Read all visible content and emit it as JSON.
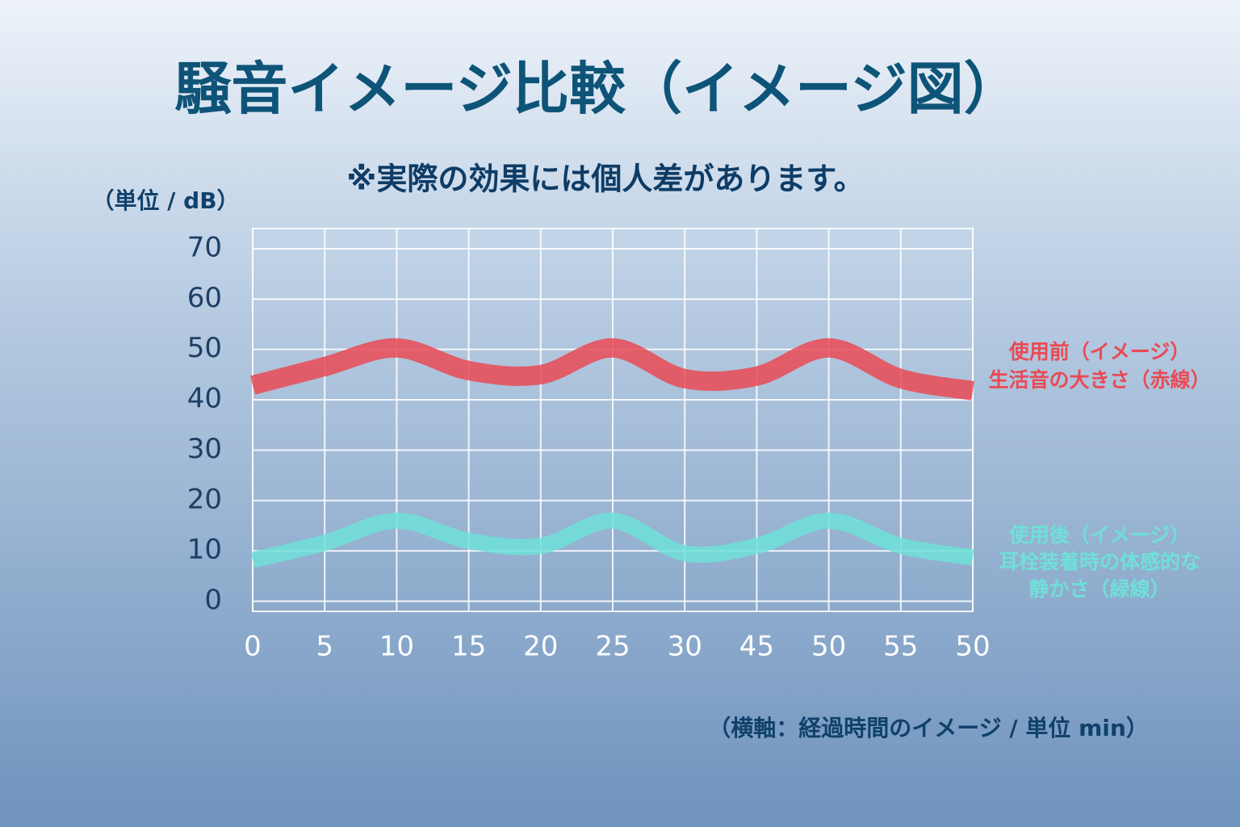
{
  "chart_data": {
    "type": "line",
    "title": "騒音イメージ比較（イメージ図）",
    "subtitle": "※実際の効果には個人差があります。",
    "y_label": "（単位 / dB）",
    "x_label": "（横軸：経過時間のイメージ / 単位 min）",
    "categories": [
      "0",
      "5",
      "10",
      "15",
      "20",
      "25",
      "30",
      "45",
      "50",
      "55",
      "50"
    ],
    "ylim": [
      -2,
      74
    ],
    "yticks": [
      0,
      10,
      20,
      30,
      40,
      50,
      60,
      70
    ],
    "grid": true,
    "series": [
      {
        "name": [
          "使用前（イメージ）",
          "生活音の大きさ（赤線）"
        ],
        "color": "#ea4a55",
        "values": [
          42.9,
          46.6,
          50.3,
          45.8,
          45,
          50.3,
          44.2,
          44.7,
          50.3,
          44.2,
          41.8
        ]
      },
      {
        "name": [
          "使用後（イメージ）",
          "耳栓装着時の体感的な",
          "静かさ（緑線）"
        ],
        "color": "#6fe0d8",
        "values": [
          8.2,
          11.6,
          16,
          12,
          11,
          16,
          9.5,
          11,
          16,
          11,
          8.7
        ]
      }
    ]
  }
}
